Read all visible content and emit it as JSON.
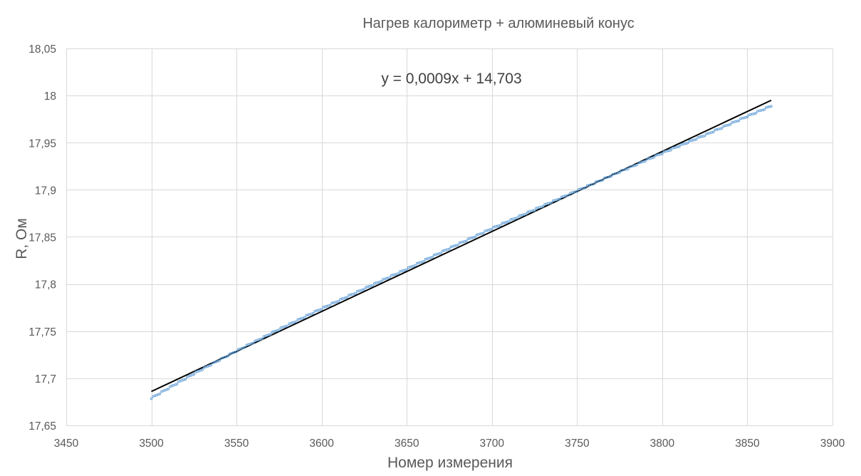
{
  "chart_data": {
    "type": "scatter",
    "title": "Нагрев калориметр + алюминевый конус",
    "xlabel": "Номер измерения",
    "ylabel": "R, Ом",
    "xlim": [
      3450,
      3900
    ],
    "ylim": [
      17.65,
      18.05
    ],
    "x_ticks": [
      3450,
      3500,
      3550,
      3600,
      3650,
      3700,
      3750,
      3800,
      3850,
      3900
    ],
    "x_tick_labels": [
      "3450",
      "3500",
      "3550",
      "3600",
      "3650",
      "3700",
      "3750",
      "3800",
      "3850",
      "3900"
    ],
    "y_ticks": [
      17.65,
      17.7,
      17.75,
      17.8,
      17.85,
      17.9,
      17.95,
      18.0,
      18.05
    ],
    "y_tick_labels": [
      "17,65",
      "17,7",
      "17,75",
      "17,8",
      "17,85",
      "17,9",
      "17,95",
      "18",
      "18,05"
    ],
    "grid": true,
    "series": [
      {
        "x": [
          3500,
          3525,
          3550,
          3575,
          3600,
          3625,
          3650,
          3675,
          3700,
          3725,
          3750,
          3775,
          3800,
          3825,
          3850,
          3864
        ],
        "y": [
          17.679,
          17.705,
          17.729,
          17.752,
          17.774,
          17.795,
          17.816,
          17.838,
          17.859,
          17.879,
          17.899,
          17.919,
          17.939,
          17.958,
          17.978,
          17.989
        ],
        "color": "#5B9BD5",
        "marker": "dot"
      }
    ],
    "trendline": {
      "equation": "y = 0,0009x + 14,703",
      "x_range": [
        3500,
        3864
      ],
      "y_range": [
        17.686,
        17.995
      ],
      "color": "#000000"
    }
  }
}
